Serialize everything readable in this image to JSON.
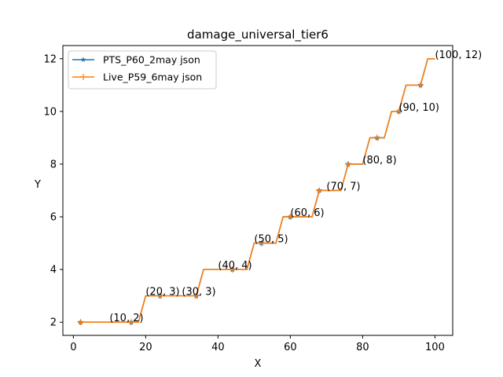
{
  "chart_data": {
    "type": "line",
    "title": "damage_universal_tier6",
    "xlabel": "X",
    "ylabel": "Y",
    "xlim": [
      -2.9,
      104.9
    ],
    "ylim": [
      1.5,
      12.5
    ],
    "xticks": [
      0,
      20,
      40,
      60,
      80,
      100
    ],
    "yticks": [
      2,
      4,
      6,
      8,
      10,
      12
    ],
    "grid": false,
    "legend_position": "top-left",
    "series": [
      {
        "name": "PTS_P60_2may json",
        "color": "#1f77b4",
        "marker": "star",
        "x": [
          2,
          16,
          18,
          20,
          24,
          26,
          28,
          30,
          34,
          36,
          38,
          40,
          44,
          46,
          48,
          50,
          52,
          54,
          56,
          58,
          60,
          64,
          66,
          68,
          72,
          74,
          76,
          80,
          82,
          84,
          86,
          88,
          90,
          92,
          96,
          98,
          100
        ],
        "y": [
          2,
          2,
          2,
          3,
          3,
          3,
          3,
          3,
          3,
          4,
          4,
          4,
          4,
          4,
          4,
          5,
          5,
          5,
          5,
          6,
          6,
          6,
          6,
          7,
          7,
          7,
          8,
          8,
          9,
          9,
          9,
          10,
          10,
          11,
          11,
          12,
          12
        ],
        "marker_x": [
          2,
          16,
          24,
          34,
          44,
          52,
          60,
          68,
          76,
          84,
          90,
          96
        ],
        "marker_y": [
          2,
          2,
          3,
          3,
          4,
          5,
          6,
          7,
          8,
          9,
          10,
          11
        ]
      },
      {
        "name": "Live_P59_6may json",
        "color": "#ff7f0e",
        "marker": "plus",
        "x": [
          2,
          16,
          18,
          20,
          24,
          26,
          28,
          30,
          34,
          36,
          38,
          40,
          44,
          46,
          48,
          50,
          52,
          54,
          56,
          58,
          60,
          64,
          66,
          68,
          72,
          74,
          76,
          80,
          82,
          84,
          86,
          88,
          90,
          92,
          96,
          98,
          100
        ],
        "y": [
          2,
          2,
          2,
          3,
          3,
          3,
          3,
          3,
          3,
          4,
          4,
          4,
          4,
          4,
          4,
          5,
          5,
          5,
          5,
          6,
          6,
          6,
          6,
          7,
          7,
          7,
          8,
          8,
          9,
          9,
          9,
          10,
          10,
          11,
          11,
          12,
          12
        ],
        "marker_x": [
          2,
          16,
          24,
          34,
          44,
          52,
          60,
          68,
          76,
          84,
          90,
          96
        ],
        "marker_y": [
          2,
          2,
          3,
          3,
          4,
          5,
          6,
          7,
          8,
          9,
          10,
          11
        ]
      }
    ],
    "annotations": [
      {
        "x": 10,
        "y": 2,
        "text": "(10, 2)"
      },
      {
        "x": 20,
        "y": 3,
        "text": "(20, 3)"
      },
      {
        "x": 30,
        "y": 3,
        "text": "(30, 3)"
      },
      {
        "x": 40,
        "y": 4,
        "text": "(40, 4)"
      },
      {
        "x": 50,
        "y": 5,
        "text": "(50, 5)"
      },
      {
        "x": 60,
        "y": 6,
        "text": "(60, 6)"
      },
      {
        "x": 70,
        "y": 7,
        "text": "(70, 7)"
      },
      {
        "x": 80,
        "y": 8,
        "text": "(80, 8)"
      },
      {
        "x": 90,
        "y": 10,
        "text": "(90, 10)"
      },
      {
        "x": 100,
        "y": 12,
        "text": "(100, 12)"
      }
    ]
  }
}
